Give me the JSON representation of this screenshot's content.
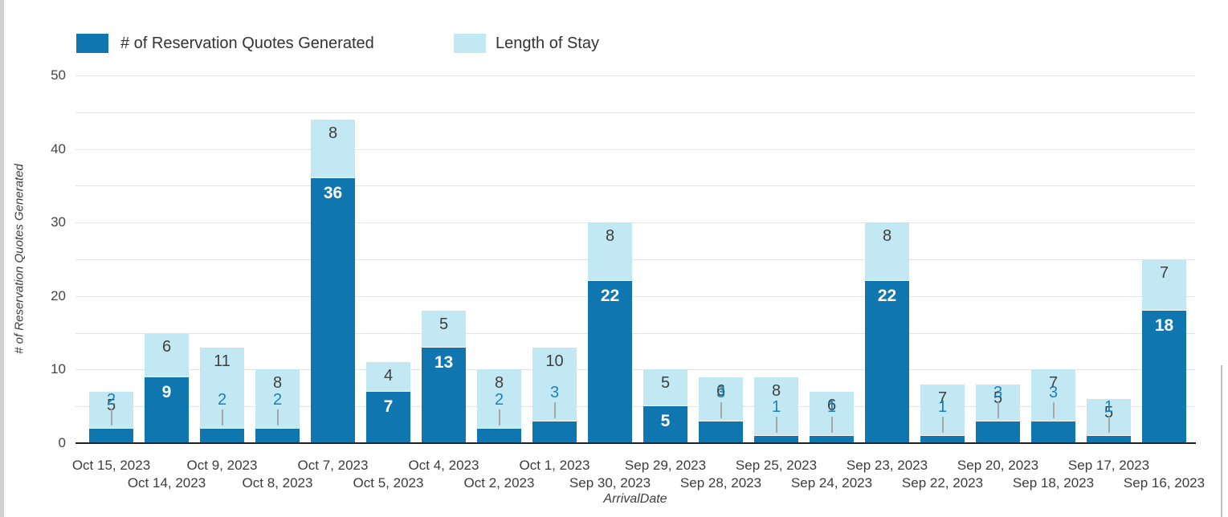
{
  "legend": {
    "quotes_label": "# of Reservation Quotes Generated",
    "los_label": "Length of Stay"
  },
  "axes": {
    "x_title": "ArrivalDate",
    "y_title": "# of Reservation Quotes Generated",
    "y_ticks": [
      0,
      10,
      20,
      30,
      40,
      50
    ]
  },
  "colors": {
    "quotes_bar": "#0f76b0",
    "los_bar": "#c2e8f3",
    "quotes_callout_text": "#1b80ba",
    "los_label_text": "#3f3f3f",
    "inside_label_text": "#ffffff",
    "gridline": "#e3e3e3",
    "baseline": "#202124"
  },
  "chart_data": {
    "type": "bar",
    "stacked": true,
    "title": "",
    "xlabel": "ArrivalDate",
    "ylabel": "# of Reservation Quotes Generated",
    "ylim": [
      0,
      50
    ],
    "grid": true,
    "legend_position": "top-left",
    "categories": [
      "Oct 15, 2023",
      "Oct 14, 2023",
      "Oct 9, 2023",
      "Oct 8, 2023",
      "Oct 7, 2023",
      "Oct 5, 2023",
      "Oct 4, 2023",
      "Oct 2, 2023",
      "Oct 1, 2023",
      "Sep 30, 2023",
      "Sep 29, 2023",
      "Sep 28, 2023",
      "Sep 25, 2023",
      "Sep 24, 2023",
      "Sep 23, 2023",
      "Sep 22, 2023",
      "Sep 20, 2023",
      "Sep 18, 2023",
      "Sep 17, 2023",
      "Sep 16, 2023"
    ],
    "series": [
      {
        "name": "# of Reservation Quotes Generated",
        "values": [
          2,
          9,
          2,
          2,
          36,
          7,
          13,
          2,
          3,
          22,
          5,
          3,
          1,
          1,
          22,
          1,
          3,
          3,
          1,
          18
        ]
      },
      {
        "name": "Length of Stay",
        "values": [
          5,
          6,
          11,
          8,
          8,
          4,
          5,
          8,
          10,
          8,
          5,
          6,
          8,
          6,
          8,
          7,
          5,
          7,
          5,
          7
        ]
      }
    ]
  }
}
